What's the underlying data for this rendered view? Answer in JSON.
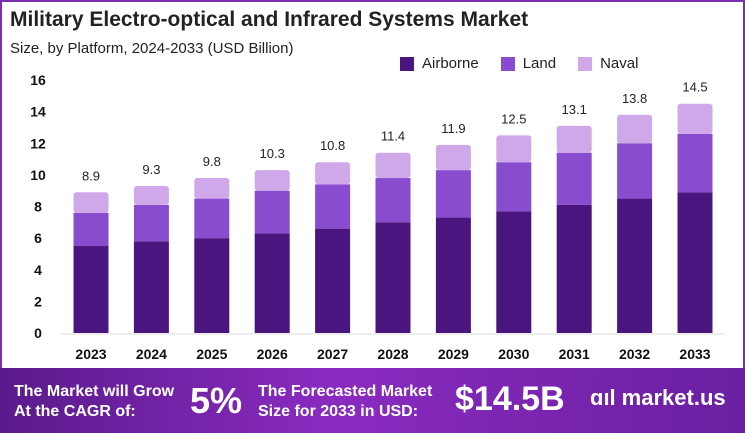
{
  "chart_data": {
    "type": "bar",
    "stacked": true,
    "title": "Military Electro-optical and Infrared Systems Market",
    "subtitle": "Size, by Platform, 2024-2033 (USD Billion)",
    "xlabel": "",
    "ylabel": "",
    "ylim": [
      0,
      16
    ],
    "yticks": [
      0,
      2,
      4,
      6,
      8,
      10,
      12,
      14,
      16
    ],
    "categories": [
      "2023",
      "2024",
      "2025",
      "2026",
      "2027",
      "2028",
      "2029",
      "2030",
      "2031",
      "2032",
      "2033"
    ],
    "totals": [
      "8.9",
      "9.3",
      "9.8",
      "10.3",
      "10.8",
      "11.4",
      "11.9",
      "12.5",
      "13.1",
      "13.8",
      "14.5"
    ],
    "series": [
      {
        "name": "Airborne",
        "color": "#4b1580",
        "values": [
          5.5,
          5.8,
          6.0,
          6.3,
          6.6,
          7.0,
          7.3,
          7.7,
          8.1,
          8.5,
          8.9
        ]
      },
      {
        "name": "Land",
        "color": "#8a4cce",
        "values": [
          2.1,
          2.3,
          2.5,
          2.7,
          2.8,
          2.8,
          3.0,
          3.1,
          3.3,
          3.5,
          3.7
        ]
      },
      {
        "name": "Naval",
        "color": "#cfa8ea",
        "values": [
          1.3,
          1.2,
          1.3,
          1.3,
          1.4,
          1.6,
          1.6,
          1.7,
          1.7,
          1.8,
          1.9
        ]
      }
    ],
    "legend": "top-right",
    "grid": false
  },
  "footer": {
    "cagr_label_1": "The Market will Grow",
    "cagr_label_2": "At the CAGR of:",
    "cagr_value": "5%",
    "forecast_label_1": "The Forecasted Market",
    "forecast_label_2": "Size for 2033 in USD:",
    "forecast_value": "$14.5B",
    "brand": "market.us",
    "brand_mark": "ɑıl"
  }
}
